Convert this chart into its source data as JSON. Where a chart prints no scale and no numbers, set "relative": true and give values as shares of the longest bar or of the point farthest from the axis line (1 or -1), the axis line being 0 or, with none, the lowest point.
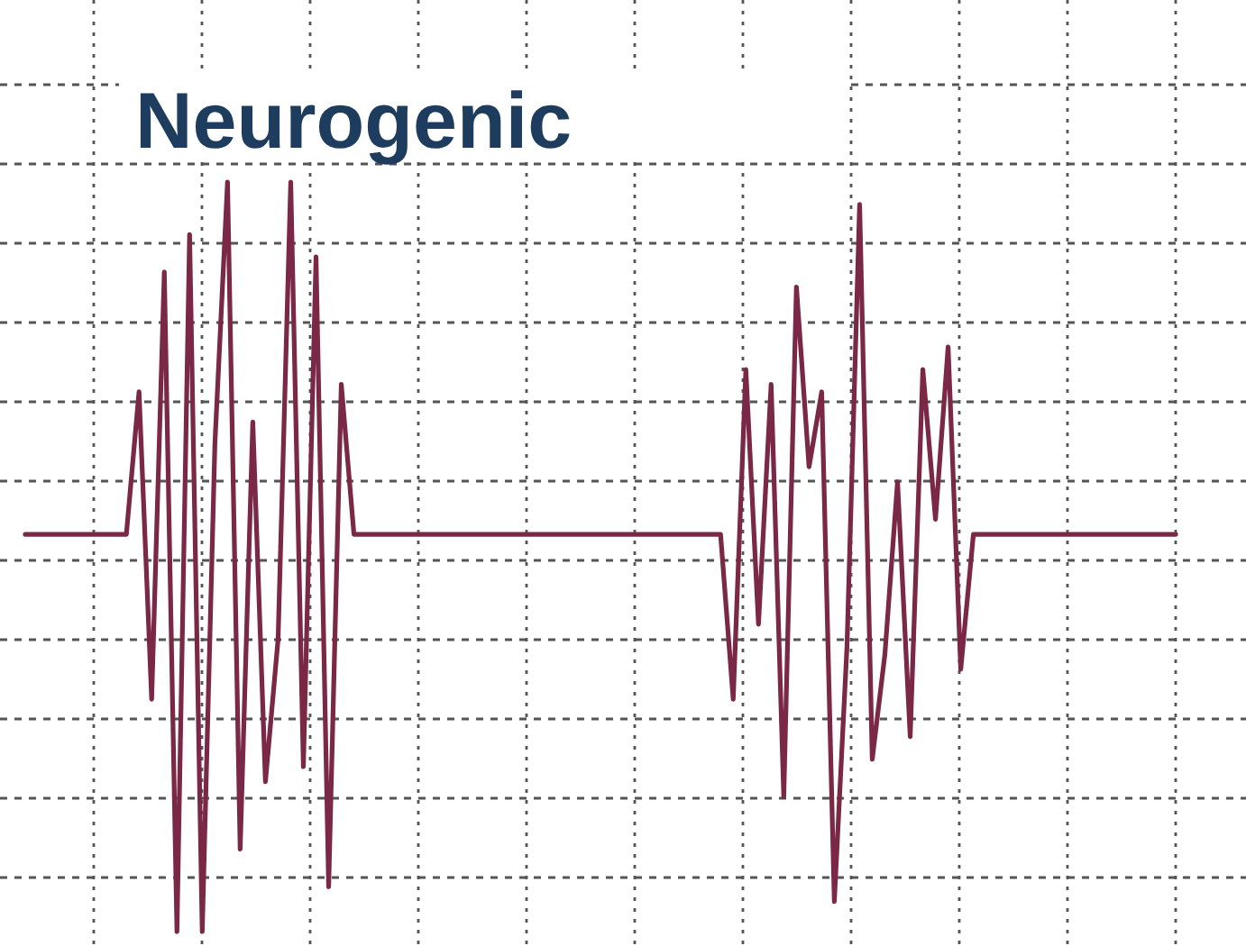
{
  "chart_data": {
    "type": "line",
    "title": "Neurogenic",
    "relative": true,
    "grid": true,
    "categories": [
      null,
      null,
      null,
      null,
      null,
      null,
      null,
      null,
      null,
      null,
      null,
      null,
      null,
      null,
      null,
      null,
      null,
      null,
      null,
      null,
      null,
      null,
      null,
      null,
      null,
      null,
      null,
      null,
      null,
      null,
      null,
      null,
      null,
      null,
      null,
      null,
      null,
      null,
      null,
      null,
      null,
      null,
      null,
      null,
      null,
      null,
      null,
      null,
      null,
      null,
      null,
      null,
      null,
      null,
      null,
      null,
      null,
      null,
      null,
      null,
      null,
      null,
      null,
      null,
      null,
      null,
      null,
      null,
      null,
      null,
      null,
      null,
      null,
      null,
      null,
      null,
      null,
      null,
      null,
      null,
      null,
      null,
      null,
      null,
      null,
      null,
      null,
      null,
      null,
      null,
      null,
      null
    ],
    "series": [
      {
        "color": "#7a2846",
        "values": [
          0.53,
          0.53,
          0.53,
          0.53,
          0.53,
          0.53,
          0.53,
          0.53,
          0.53,
          0.72,
          0.31,
          0.88,
          0,
          0.93,
          0,
          0.65,
          1,
          0.11,
          0.68,
          0.2,
          0.39,
          1,
          0.22,
          0.9,
          0.06,
          0.73,
          0.53,
          0.53,
          0.53,
          0.53,
          0.53,
          0.53,
          0.53,
          0.53,
          0.53,
          0.53,
          0.53,
          0.53,
          0.53,
          0.53,
          0.53,
          0.53,
          0.53,
          0.53,
          0.53,
          0.53,
          0.53,
          0.53,
          0.53,
          0.53,
          0.53,
          0.53,
          0.53,
          0.53,
          0.53,
          0.53,
          0.31,
          0.75,
          0.41,
          0.73,
          0.18,
          0.86,
          0.62,
          0.72,
          0.04,
          0.38,
          0.97,
          0.23,
          0.37,
          0.6,
          0.26,
          0.75,
          0.55,
          0.78,
          0.35,
          0.53,
          0.53,
          0.53,
          0.53,
          0.53,
          0.53,
          0.53,
          0.53,
          0.53,
          0.53,
          0.53,
          0.53,
          0.53,
          0.53,
          0.53,
          0.53,
          0.53
        ]
      }
    ]
  }
}
